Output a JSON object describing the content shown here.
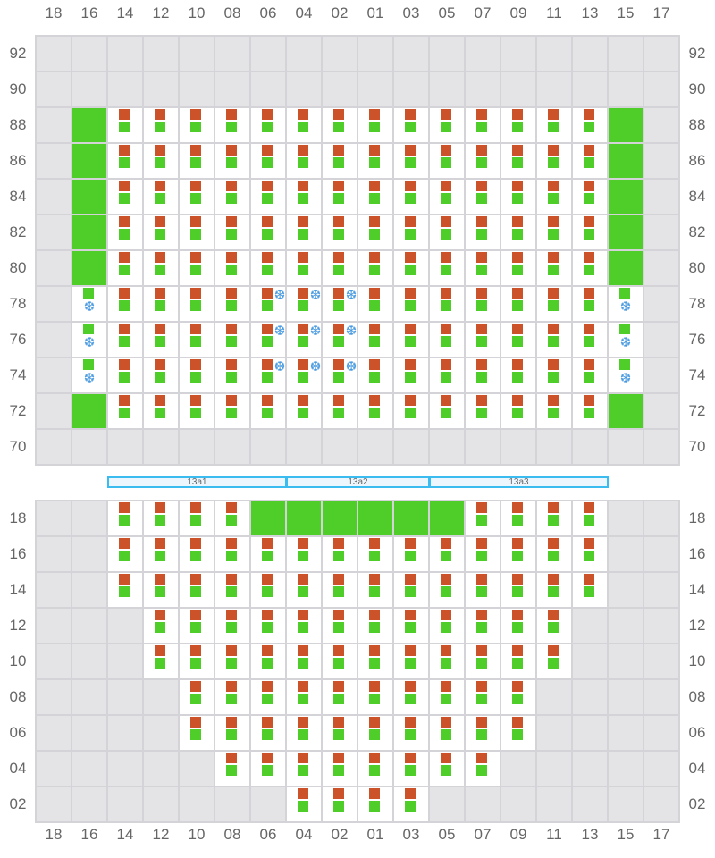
{
  "columns": [
    "18",
    "16",
    "14",
    "12",
    "10",
    "08",
    "06",
    "04",
    "02",
    "01",
    "03",
    "05",
    "07",
    "09",
    "11",
    "13",
    "15",
    "17"
  ],
  "legend": {
    "x": "empty position",
    "og": "orange and green units",
    "g": "green unit",
    "gs": "green unit with cooling",
    "ogs": "orange and green units with cooling"
  },
  "colors": {
    "orange": "#cc5229",
    "green": "#4fce2a",
    "cooling": "#4a9be0",
    "empty": "#e4e4e7",
    "segment_border": "#3bbcf0"
  },
  "icons": {
    "cooling": "snowflake-icon"
  },
  "top_section": {
    "rows": [
      {
        "label": "92",
        "cells": [
          "x",
          "x",
          "x",
          "x",
          "x",
          "x",
          "x",
          "x",
          "x",
          "x",
          "x",
          "x",
          "x",
          "x",
          "x",
          "x",
          "x",
          "x"
        ]
      },
      {
        "label": "90",
        "cells": [
          "x",
          "x",
          "x",
          "x",
          "x",
          "x",
          "x",
          "x",
          "x",
          "x",
          "x",
          "x",
          "x",
          "x",
          "x",
          "x",
          "x",
          "x"
        ]
      },
      {
        "label": "88",
        "cells": [
          "x",
          "g",
          "og",
          "og",
          "og",
          "og",
          "og",
          "og",
          "og",
          "og",
          "og",
          "og",
          "og",
          "og",
          "og",
          "og",
          "g",
          "x"
        ]
      },
      {
        "label": "86",
        "cells": [
          "x",
          "g",
          "og",
          "og",
          "og",
          "og",
          "og",
          "og",
          "og",
          "og",
          "og",
          "og",
          "og",
          "og",
          "og",
          "og",
          "g",
          "x"
        ]
      },
      {
        "label": "84",
        "cells": [
          "x",
          "g",
          "og",
          "og",
          "og",
          "og",
          "og",
          "og",
          "og",
          "og",
          "og",
          "og",
          "og",
          "og",
          "og",
          "og",
          "g",
          "x"
        ]
      },
      {
        "label": "82",
        "cells": [
          "x",
          "g",
          "og",
          "og",
          "og",
          "og",
          "og",
          "og",
          "og",
          "og",
          "og",
          "og",
          "og",
          "og",
          "og",
          "og",
          "g",
          "x"
        ]
      },
      {
        "label": "80",
        "cells": [
          "x",
          "g",
          "og",
          "og",
          "og",
          "og",
          "og",
          "og",
          "og",
          "og",
          "og",
          "og",
          "og",
          "og",
          "og",
          "og",
          "g",
          "x"
        ]
      },
      {
        "label": "78",
        "cells": [
          "x",
          "gs",
          "og",
          "og",
          "og",
          "og",
          "ogs",
          "ogs",
          "ogs",
          "og",
          "og",
          "og",
          "og",
          "og",
          "og",
          "og",
          "gs",
          "x"
        ]
      },
      {
        "label": "76",
        "cells": [
          "x",
          "gs",
          "og",
          "og",
          "og",
          "og",
          "ogs",
          "ogs",
          "ogs",
          "og",
          "og",
          "og",
          "og",
          "og",
          "og",
          "og",
          "gs",
          "x"
        ]
      },
      {
        "label": "74",
        "cells": [
          "x",
          "gs",
          "og",
          "og",
          "og",
          "og",
          "ogs",
          "ogs",
          "ogs",
          "og",
          "og",
          "og",
          "og",
          "og",
          "og",
          "og",
          "gs",
          "x"
        ]
      },
      {
        "label": "72",
        "cells": [
          "x",
          "g",
          "og",
          "og",
          "og",
          "og",
          "og",
          "og",
          "og",
          "og",
          "og",
          "og",
          "og",
          "og",
          "og",
          "og",
          "g",
          "x"
        ]
      },
      {
        "label": "70",
        "cells": [
          "x",
          "x",
          "x",
          "x",
          "x",
          "x",
          "x",
          "x",
          "x",
          "x",
          "x",
          "x",
          "x",
          "x",
          "x",
          "x",
          "x",
          "x"
        ]
      }
    ]
  },
  "segments": [
    {
      "label": "13a1",
      "from_col": "14",
      "to_col": "06"
    },
    {
      "label": "13a2",
      "from_col": "04",
      "to_col": "03"
    },
    {
      "label": "13a3",
      "from_col": "05",
      "to_col": "13"
    }
  ],
  "bottom_section": {
    "rows": [
      {
        "label": "18",
        "cells": [
          "x",
          "x",
          "og",
          "og",
          "og",
          "og",
          "g",
          "g",
          "g",
          "g",
          "g",
          "g",
          "og",
          "og",
          "og",
          "og",
          "x",
          "x"
        ]
      },
      {
        "label": "16",
        "cells": [
          "x",
          "x",
          "og",
          "og",
          "og",
          "og",
          "og",
          "og",
          "og",
          "og",
          "og",
          "og",
          "og",
          "og",
          "og",
          "og",
          "x",
          "x"
        ]
      },
      {
        "label": "14",
        "cells": [
          "x",
          "x",
          "og",
          "og",
          "og",
          "og",
          "og",
          "og",
          "og",
          "og",
          "og",
          "og",
          "og",
          "og",
          "og",
          "og",
          "x",
          "x"
        ]
      },
      {
        "label": "12",
        "cells": [
          "x",
          "x",
          "x",
          "og",
          "og",
          "og",
          "og",
          "og",
          "og",
          "og",
          "og",
          "og",
          "og",
          "og",
          "og",
          "x",
          "x",
          "x"
        ]
      },
      {
        "label": "10",
        "cells": [
          "x",
          "x",
          "x",
          "og",
          "og",
          "og",
          "og",
          "og",
          "og",
          "og",
          "og",
          "og",
          "og",
          "og",
          "og",
          "x",
          "x",
          "x"
        ]
      },
      {
        "label": "08",
        "cells": [
          "x",
          "x",
          "x",
          "x",
          "og",
          "og",
          "og",
          "og",
          "og",
          "og",
          "og",
          "og",
          "og",
          "og",
          "x",
          "x",
          "x",
          "x"
        ]
      },
      {
        "label": "06",
        "cells": [
          "x",
          "x",
          "x",
          "x",
          "og",
          "og",
          "og",
          "og",
          "og",
          "og",
          "og",
          "og",
          "og",
          "og",
          "x",
          "x",
          "x",
          "x"
        ]
      },
      {
        "label": "04",
        "cells": [
          "x",
          "x",
          "x",
          "x",
          "x",
          "og",
          "og",
          "og",
          "og",
          "og",
          "og",
          "og",
          "og",
          "x",
          "x",
          "x",
          "x",
          "x"
        ]
      },
      {
        "label": "02",
        "cells": [
          "x",
          "x",
          "x",
          "x",
          "x",
          "x",
          "x",
          "og",
          "og",
          "og",
          "og",
          "x",
          "x",
          "x",
          "x",
          "x",
          "x",
          "x"
        ]
      }
    ]
  }
}
